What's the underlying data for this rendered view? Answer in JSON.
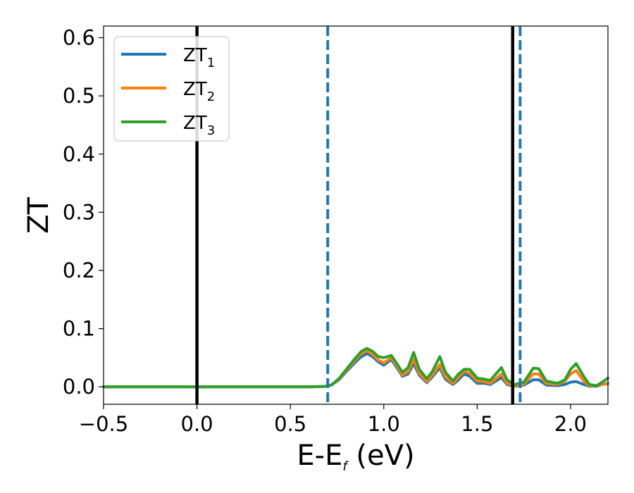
{
  "chart_data": {
    "type": "line",
    "xlabel": "E-E",
    "xlabel_sub": "f",
    "xlabel_unit": " (eV)",
    "ylabel": "ZT",
    "xlim": [
      -0.5,
      2.2
    ],
    "ylim": [
      -0.03,
      0.62
    ],
    "x_ticks": [
      -0.5,
      0.0,
      0.5,
      1.0,
      1.5,
      2.0
    ],
    "x_tick_labels": [
      "−0.5",
      "0.0",
      "0.5",
      "1.0",
      "1.5",
      "2.0"
    ],
    "y_ticks": [
      0.0,
      0.1,
      0.2,
      0.3,
      0.4,
      0.5,
      0.6
    ],
    "y_tick_labels": [
      "0.0",
      "0.1",
      "0.2",
      "0.3",
      "0.4",
      "0.5",
      "0.6"
    ],
    "grid": false,
    "legend_position": "top-left",
    "vertical_lines": [
      {
        "x": 0.0,
        "style": "solid",
        "color": "#000000"
      },
      {
        "x": 0.7,
        "style": "dashed",
        "color": "#1f77b4"
      },
      {
        "x": 1.69,
        "style": "solid",
        "color": "#000000"
      },
      {
        "x": 1.73,
        "style": "dashed",
        "color": "#1f77b4"
      }
    ],
    "series": [
      {
        "name": "ZT",
        "name_sub": "1",
        "color": "#1f77b4",
        "points": [
          [
            -0.5,
            0
          ],
          [
            0.6,
            0
          ],
          [
            0.68,
            0.0005
          ],
          [
            0.72,
            0.003
          ],
          [
            0.76,
            0.012
          ],
          [
            0.8,
            0.026
          ],
          [
            0.85,
            0.043
          ],
          [
            0.88,
            0.052
          ],
          [
            0.91,
            0.057
          ],
          [
            0.94,
            0.052
          ],
          [
            0.97,
            0.043
          ],
          [
            1.0,
            0.037
          ],
          [
            1.04,
            0.047
          ],
          [
            1.07,
            0.033
          ],
          [
            1.1,
            0.018
          ],
          [
            1.13,
            0.022
          ],
          [
            1.16,
            0.04
          ],
          [
            1.19,
            0.02
          ],
          [
            1.23,
            0.007
          ],
          [
            1.26,
            0.017
          ],
          [
            1.3,
            0.033
          ],
          [
            1.33,
            0.013
          ],
          [
            1.37,
            0.004
          ],
          [
            1.4,
            0.012
          ],
          [
            1.43,
            0.022
          ],
          [
            1.46,
            0.018
          ],
          [
            1.5,
            0.006
          ],
          [
            1.54,
            0.006
          ],
          [
            1.57,
            0.004
          ],
          [
            1.6,
            0.01
          ],
          [
            1.63,
            0.016
          ],
          [
            1.66,
            0.004
          ],
          [
            1.7,
            0.001
          ],
          [
            1.75,
            0.003
          ],
          [
            1.8,
            0.012
          ],
          [
            1.83,
            0.012
          ],
          [
            1.87,
            0.003
          ],
          [
            1.93,
            0.002
          ],
          [
            1.97,
            0.004
          ],
          [
            2.0,
            0.008
          ],
          [
            2.03,
            0.009
          ],
          [
            2.07,
            0.004
          ],
          [
            2.1,
            0.001
          ],
          [
            2.14,
            0.001
          ],
          [
            2.17,
            0.004
          ],
          [
            2.2,
            0.006
          ]
        ]
      },
      {
        "name": "ZT",
        "name_sub": "2",
        "color": "#ff7f0e",
        "points": [
          [
            -0.5,
            0
          ],
          [
            0.6,
            0
          ],
          [
            0.68,
            0.0005
          ],
          [
            0.72,
            0.003
          ],
          [
            0.76,
            0.013
          ],
          [
            0.8,
            0.028
          ],
          [
            0.85,
            0.047
          ],
          [
            0.88,
            0.057
          ],
          [
            0.91,
            0.062
          ],
          [
            0.94,
            0.056
          ],
          [
            0.97,
            0.046
          ],
          [
            1.0,
            0.041
          ],
          [
            1.04,
            0.05
          ],
          [
            1.07,
            0.036
          ],
          [
            1.1,
            0.02
          ],
          [
            1.13,
            0.026
          ],
          [
            1.16,
            0.047
          ],
          [
            1.19,
            0.023
          ],
          [
            1.23,
            0.009
          ],
          [
            1.26,
            0.02
          ],
          [
            1.3,
            0.038
          ],
          [
            1.33,
            0.017
          ],
          [
            1.37,
            0.006
          ],
          [
            1.4,
            0.016
          ],
          [
            1.43,
            0.027
          ],
          [
            1.46,
            0.023
          ],
          [
            1.5,
            0.01
          ],
          [
            1.54,
            0.009
          ],
          [
            1.57,
            0.006
          ],
          [
            1.6,
            0.014
          ],
          [
            1.63,
            0.022
          ],
          [
            1.66,
            0.006
          ],
          [
            1.7,
            0.002
          ],
          [
            1.75,
            0.005
          ],
          [
            1.8,
            0.022
          ],
          [
            1.83,
            0.022
          ],
          [
            1.87,
            0.006
          ],
          [
            1.93,
            0.004
          ],
          [
            1.97,
            0.01
          ],
          [
            2.0,
            0.022
          ],
          [
            2.03,
            0.028
          ],
          [
            2.07,
            0.01
          ],
          [
            2.1,
            0.002
          ],
          [
            2.14,
            0.002
          ],
          [
            2.17,
            0.004
          ],
          [
            2.2,
            0.005
          ]
        ]
      },
      {
        "name": "ZT",
        "name_sub": "3",
        "color": "#2ca02c",
        "points": [
          [
            -0.5,
            0
          ],
          [
            0.6,
            0
          ],
          [
            0.68,
            0.0005
          ],
          [
            0.72,
            0.003
          ],
          [
            0.76,
            0.014
          ],
          [
            0.8,
            0.03
          ],
          [
            0.85,
            0.05
          ],
          [
            0.88,
            0.061
          ],
          [
            0.91,
            0.066
          ],
          [
            0.94,
            0.061
          ],
          [
            0.97,
            0.052
          ],
          [
            1.0,
            0.05
          ],
          [
            1.04,
            0.054
          ],
          [
            1.07,
            0.04
          ],
          [
            1.1,
            0.025
          ],
          [
            1.13,
            0.033
          ],
          [
            1.16,
            0.059
          ],
          [
            1.19,
            0.03
          ],
          [
            1.23,
            0.014
          ],
          [
            1.26,
            0.026
          ],
          [
            1.3,
            0.052
          ],
          [
            1.33,
            0.025
          ],
          [
            1.37,
            0.01
          ],
          [
            1.4,
            0.022
          ],
          [
            1.43,
            0.03
          ],
          [
            1.46,
            0.03
          ],
          [
            1.5,
            0.015
          ],
          [
            1.54,
            0.013
          ],
          [
            1.57,
            0.011
          ],
          [
            1.6,
            0.022
          ],
          [
            1.63,
            0.033
          ],
          [
            1.66,
            0.012
          ],
          [
            1.7,
            0.004
          ],
          [
            1.75,
            0.008
          ],
          [
            1.8,
            0.032
          ],
          [
            1.83,
            0.031
          ],
          [
            1.87,
            0.01
          ],
          [
            1.93,
            0.006
          ],
          [
            1.97,
            0.012
          ],
          [
            2.0,
            0.03
          ],
          [
            2.03,
            0.04
          ],
          [
            2.07,
            0.018
          ],
          [
            2.1,
            0.004
          ],
          [
            2.14,
            0.002
          ],
          [
            2.17,
            0.008
          ],
          [
            2.2,
            0.015
          ]
        ]
      }
    ]
  }
}
